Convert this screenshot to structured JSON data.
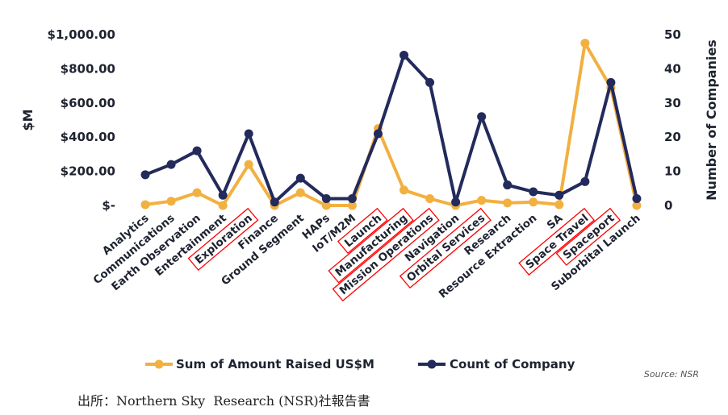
{
  "chart_data": {
    "type": "line",
    "categories": [
      "Analytics",
      "Communications",
      "Earth Observation",
      "Entertainment",
      "Exploration",
      "Finance",
      "Ground Segment",
      "HAPs",
      "IoT/M2M",
      "Launch",
      "Manufacturing",
      "Mission Operations",
      "Navigation",
      "Orbital Services",
      "Research",
      "Resource Extraction",
      "SA",
      "Space Travel",
      "Spaceport",
      "Suborbital Launch"
    ],
    "highlighted": [
      "Exploration",
      "Launch",
      "Manufacturing",
      "Mission Operations",
      "Orbital Services",
      "Space Travel",
      "Spaceport"
    ],
    "series": [
      {
        "name": "Sum of Amount Raised US$M",
        "axis": "left",
        "color": "#f2b040",
        "values": [
          5,
          25,
          75,
          0,
          240,
          0,
          75,
          0,
          0,
          450,
          90,
          40,
          0,
          30,
          15,
          20,
          5,
          950,
          690,
          0
        ]
      },
      {
        "name": "Count of Company",
        "axis": "right",
        "color": "#232a5c",
        "values": [
          9,
          12,
          16,
          3,
          21,
          1,
          8,
          2,
          2,
          21,
          44,
          36,
          1,
          26,
          6,
          4,
          3,
          7,
          36,
          2
        ]
      }
    ],
    "ylabel": "$M",
    "y2label": "Number of Companies",
    "ylim": [
      0,
      1000
    ],
    "y2lim": [
      0,
      50
    ],
    "yticks": [
      "$-",
      "$200.00",
      "$400.00",
      "$600.00",
      "$800.00",
      "$1,000.00"
    ],
    "y2ticks": [
      "0",
      "10",
      "20",
      "30",
      "40",
      "50"
    ],
    "grid": false,
    "legend_position": "bottom",
    "source": "Source: NSR",
    "highlight_color": "#ff0000"
  },
  "caption": "出所：Northern Sky  Research (NSR)社報告書"
}
